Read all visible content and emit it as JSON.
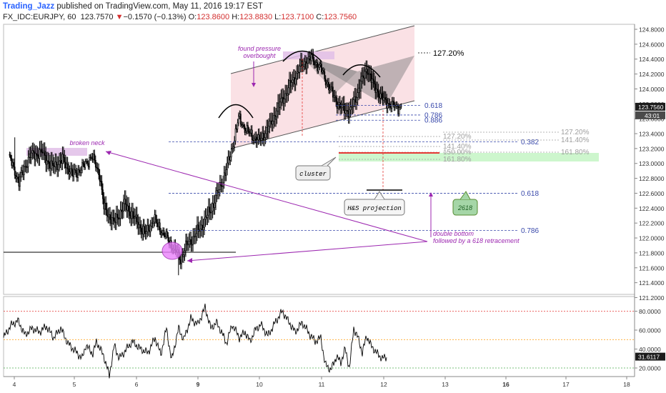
{
  "header": {
    "author": "Trading_Jazz",
    "published": " published on TradingView.com, May 11, 2016 19:17 EST",
    "symbol": "FX_IDC:EURJPY, 60",
    "last": "123.7570",
    "arrow": "▼",
    "change": "−0.1570 (−0.13%)",
    "o_label": "O:",
    "o_value": "123.8600",
    "h_label": "H:",
    "h_value": "123.8830",
    "l_label": "L:",
    "l_value": "123.7100",
    "c_label": "C:",
    "c_value": "123.7560"
  },
  "colors": {
    "candle": "#000000",
    "annotation": "#9c27b0",
    "fib_blue": "#3949ab",
    "fib_gray": "#9e9e9e",
    "channel_fill": "#f8d7dc",
    "channel_line": "#555555",
    "projection_red": "#e53935",
    "target_green": "#c8f5c8",
    "price_badge": "#1c1c1c",
    "rsi_line": "#000000",
    "rsi_upper": "#e53935",
    "rsi_mid": "#ff9800",
    "rsi_lower": "#4caf50"
  },
  "chart_data": [
    {
      "type": "candlestick",
      "title": "FX_IDC:EURJPY, 60",
      "x_ticks": [
        "4",
        "5",
        "6",
        "9",
        "10",
        "11",
        "12",
        "13",
        "16",
        "17",
        "18"
      ],
      "y_ticks": [
        "124.8000",
        "124.6000",
        "124.4000",
        "124.2000",
        "124.0000",
        "123.8000",
        "123.6000",
        "123.4000",
        "123.2000",
        "123.0000",
        "122.8000",
        "122.6000",
        "122.4000",
        "122.2000",
        "122.0000",
        "121.8000",
        "121.6000",
        "121.4000",
        "121.2000"
      ],
      "ylim": [
        121.2,
        124.9
      ],
      "last_price": "123.7560",
      "countdown": "43:01",
      "waypoints": [
        [
          0,
          123.1
        ],
        [
          10,
          122.75
        ],
        [
          20,
          123.1
        ],
        [
          32,
          123.15
        ],
        [
          42,
          122.95
        ],
        [
          52,
          123.05
        ],
        [
          62,
          122.85
        ],
        [
          72,
          122.95
        ],
        [
          80,
          123.1
        ],
        [
          88,
          122.85
        ],
        [
          92,
          122.4
        ],
        [
          102,
          122.2
        ],
        [
          112,
          122.45
        ],
        [
          122,
          122.25
        ],
        [
          132,
          122.05
        ],
        [
          140,
          122.25
        ],
        [
          150,
          122.05
        ],
        [
          160,
          121.85
        ],
        [
          166,
          121.72
        ],
        [
          172,
          121.9
        ],
        [
          178,
          122.0
        ],
        [
          186,
          122.15
        ],
        [
          196,
          122.4
        ],
        [
          206,
          122.75
        ],
        [
          214,
          123.1
        ],
        [
          222,
          123.6
        ],
        [
          232,
          123.4
        ],
        [
          242,
          123.3
        ],
        [
          252,
          123.5
        ],
        [
          262,
          123.8
        ],
        [
          272,
          124.05
        ],
        [
          282,
          124.3
        ],
        [
          292,
          124.42
        ],
        [
          302,
          124.25
        ],
        [
          310,
          124.0
        ],
        [
          320,
          123.75
        ],
        [
          330,
          123.7
        ],
        [
          338,
          124.0
        ],
        [
          346,
          124.28
        ],
        [
          352,
          124.05
        ],
        [
          362,
          123.85
        ],
        [
          372,
          123.76
        ]
      ],
      "fib_levels": [
        {
          "label": "0.618",
          "value": 123.78
        },
        {
          "label": "0.786",
          "value": 123.65
        },
        {
          "label": "0.886",
          "value": 123.58
        },
        {
          "label": "0.382",
          "value": 123.29
        },
        {
          "label": "0.618",
          "value": 122.6
        },
        {
          "label": "0.786",
          "value": 122.1
        }
      ],
      "extension_labels": [
        "127.20%",
        "141.40%",
        "127.20%",
        "141.40%",
        "150.00%",
        "161.80%",
        "161.80%"
      ],
      "annotations": {
        "pressure": "found pressure\noverbought",
        "neck": "broken neck",
        "cluster": "cluster",
        "projection": "H&S projection",
        "target": "2618",
        "double_bottom": "double bottom\nfollowed by a 618 retracement",
        "channel_ext": "127.20%"
      }
    },
    {
      "type": "line",
      "title": "",
      "y_ticks": [
        "80.0000",
        "60.0000",
        "40.0000",
        "20.0000"
      ],
      "ylim": [
        10,
        92
      ],
      "levels": [
        80,
        50,
        20
      ],
      "last_value": "31.6117",
      "waypoints": [
        [
          0,
          52
        ],
        [
          10,
          65
        ],
        [
          20,
          70
        ],
        [
          30,
          55
        ],
        [
          40,
          62
        ],
        [
          50,
          58
        ],
        [
          60,
          64
        ],
        [
          70,
          52
        ],
        [
          80,
          62
        ],
        [
          90,
          46
        ],
        [
          100,
          38
        ],
        [
          110,
          30
        ],
        [
          115,
          44
        ],
        [
          125,
          35
        ],
        [
          130,
          48
        ],
        [
          140,
          33
        ],
        [
          148,
          12
        ],
        [
          155,
          44
        ],
        [
          162,
          30
        ],
        [
          170,
          38
        ],
        [
          180,
          48
        ],
        [
          192,
          40
        ],
        [
          202,
          36
        ],
        [
          212,
          52
        ],
        [
          220,
          34
        ],
        [
          228,
          62
        ],
        [
          235,
          28
        ],
        [
          245,
          62
        ],
        [
          252,
          50
        ],
        [
          262,
          72
        ],
        [
          272,
          66
        ],
        [
          282,
          84
        ],
        [
          290,
          62
        ],
        [
          298,
          68
        ],
        [
          305,
          58
        ],
        [
          312,
          46
        ],
        [
          320,
          66
        ],
        [
          330,
          52
        ],
        [
          338,
          58
        ],
        [
          345,
          48
        ],
        [
          352,
          60
        ],
        [
          360,
          66
        ],
        [
          370,
          54
        ],
        [
          380,
          68
        ],
        [
          390,
          80
        ],
        [
          398,
          70
        ],
        [
          408,
          58
        ],
        [
          418,
          68
        ],
        [
          428,
          56
        ],
        [
          436,
          48
        ],
        [
          444,
          52
        ],
        [
          450,
          24
        ],
        [
          458,
          18
        ],
        [
          466,
          32
        ],
        [
          472,
          26
        ],
        [
          478,
          40
        ],
        [
          484,
          20
        ],
        [
          490,
          62
        ],
        [
          496,
          52
        ],
        [
          502,
          36
        ],
        [
          508,
          54
        ],
        [
          514,
          44
        ],
        [
          522,
          36
        ],
        [
          530,
          30
        ],
        [
          536,
          31.6
        ]
      ]
    }
  ]
}
